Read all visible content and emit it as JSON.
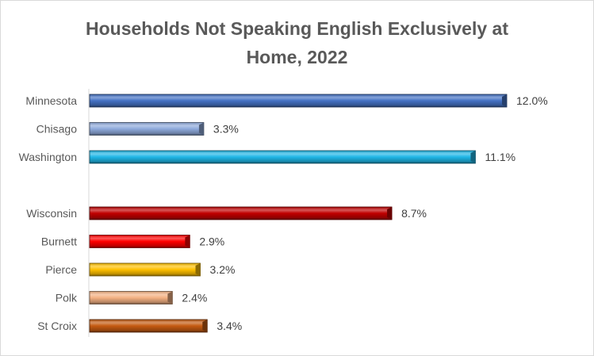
{
  "chart_data": {
    "type": "bar",
    "orientation": "horizontal",
    "title": "Households Not Speaking English Exclusively at Home, 2022",
    "title_lines": [
      "Households Not Speaking English Exclusively at",
      "Home, 2022"
    ],
    "unit": "%",
    "xlim": [
      0,
      12.0
    ],
    "grid": false,
    "legend": "none",
    "groups": [
      {
        "bars": [
          {
            "category": "Minnesota",
            "value": 12.0,
            "label": "12.0%",
            "color": "#4472c4"
          },
          {
            "category": "Chisago",
            "value": 3.3,
            "label": "3.3%",
            "color": "#8faadc"
          },
          {
            "category": "Washington",
            "value": 11.1,
            "label": "11.1%",
            "color": "#1fb6e6"
          }
        ]
      },
      {
        "bars": [
          {
            "category": "Wisconsin",
            "value": 8.7,
            "label": "8.7%",
            "color": "#c00000"
          },
          {
            "category": "Burnett",
            "value": 2.9,
            "label": "2.9%",
            "color": "#ff0000"
          },
          {
            "category": "Pierce",
            "value": 3.2,
            "label": "3.2%",
            "color": "#ffc000"
          },
          {
            "category": "Polk",
            "value": 2.4,
            "label": "2.4%",
            "color": "#f4b183"
          },
          {
            "category": "St Croix",
            "value": 3.4,
            "label": "3.4%",
            "color": "#c55a11"
          }
        ]
      }
    ]
  }
}
